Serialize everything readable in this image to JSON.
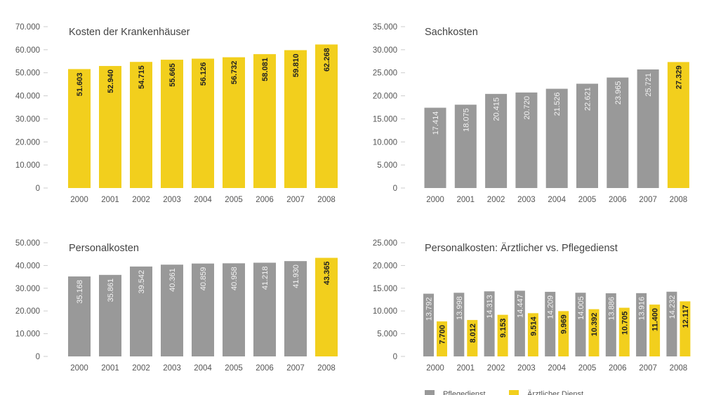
{
  "colors": {
    "highlight": "#f2cf1d",
    "grey": "#999999",
    "axis": "#cccccc"
  },
  "chart_data": [
    {
      "type": "bar",
      "title": "Kosten der Krankenhäuser",
      "categories": [
        "2000",
        "2001",
        "2002",
        "2003",
        "2004",
        "2005",
        "2006",
        "2007",
        "2008"
      ],
      "series": [
        {
          "name": "Kosten",
          "values": [
            51603,
            52940,
            54715,
            55665,
            56126,
            56732,
            58081,
            59810,
            62268
          ],
          "labels": [
            "51.603",
            "52.940",
            "54.715",
            "55.665",
            "56.126",
            "56.732",
            "58.081",
            "59.810",
            "62.268"
          ],
          "color": "yellow"
        }
      ],
      "ylim": [
        0,
        70000
      ],
      "yticks": [
        "0",
        "10.000",
        "20.000",
        "30.000",
        "40.000",
        "50.000",
        "60.000",
        "70.000"
      ],
      "xlabel": "",
      "ylabel": ""
    },
    {
      "type": "bar",
      "title": "Sachkosten",
      "categories": [
        "2000",
        "2001",
        "2002",
        "2003",
        "2004",
        "2005",
        "2006",
        "2007",
        "2008"
      ],
      "series": [
        {
          "name": "Sachkosten",
          "values": [
            17414,
            18075,
            20415,
            20720,
            21526,
            22621,
            23965,
            25721,
            27329
          ],
          "labels": [
            "17.414",
            "18.075",
            "20.415",
            "20.720",
            "21.526",
            "22.621",
            "23.965",
            "25.721",
            "27.329"
          ],
          "color": "grey-last-yellow"
        }
      ],
      "ylim": [
        0,
        35000
      ],
      "yticks": [
        "0",
        "5.000",
        "10.000",
        "15.000",
        "20.000",
        "25.000",
        "30.000",
        "35.000"
      ],
      "xlabel": "",
      "ylabel": ""
    },
    {
      "type": "bar",
      "title": "Personalkosten",
      "categories": [
        "2000",
        "2001",
        "2002",
        "2003",
        "2004",
        "2005",
        "2006",
        "2007",
        "2008"
      ],
      "series": [
        {
          "name": "Personalkosten",
          "values": [
            35168,
            35861,
            39542,
            40361,
            40859,
            40958,
            41218,
            41930,
            43365
          ],
          "labels": [
            "35.168",
            "35.861",
            "39.542",
            "40.361",
            "40.859",
            "40.958",
            "41.218",
            "41.930",
            "43.365"
          ],
          "color": "grey-last-yellow"
        }
      ],
      "ylim": [
        0,
        50000
      ],
      "yticks": [
        "0",
        "10.000",
        "20.000",
        "30.000",
        "40.000",
        "50.000"
      ],
      "xlabel": "",
      "ylabel": ""
    },
    {
      "type": "bar",
      "title": "Personalkosten: Ärztlicher vs. Pflegedienst",
      "categories": [
        "2000",
        "2001",
        "2002",
        "2003",
        "2004",
        "2005",
        "2006",
        "2007",
        "2008"
      ],
      "series": [
        {
          "name": "Pflegedienst",
          "values": [
            13792,
            13998,
            14313,
            14447,
            14209,
            14005,
            13886,
            13916,
            14232
          ],
          "labels": [
            "13.792",
            "13.998",
            "14.313",
            "14.447",
            "14.209",
            "14.005",
            "13.886",
            "13.916",
            "14.232"
          ],
          "color": "grey"
        },
        {
          "name": "Ärztlicher Dienst",
          "values": [
            7700,
            8012,
            9153,
            9514,
            9969,
            10392,
            10705,
            11400,
            12117
          ],
          "labels": [
            "7.700",
            "8.012",
            "9.153",
            "9.514",
            "9.969",
            "10.392",
            "10.705",
            "11.400",
            "12.117"
          ],
          "color": "yellow"
        }
      ],
      "ylim": [
        0,
        25000
      ],
      "yticks": [
        "0",
        "5.000",
        "10.000",
        "15.000",
        "20.000",
        "25.000"
      ],
      "legend": [
        "Pflegedienst",
        "Ärztlicher Dienst"
      ],
      "legend_position": "bottom-left",
      "xlabel": "",
      "ylabel": ""
    }
  ]
}
